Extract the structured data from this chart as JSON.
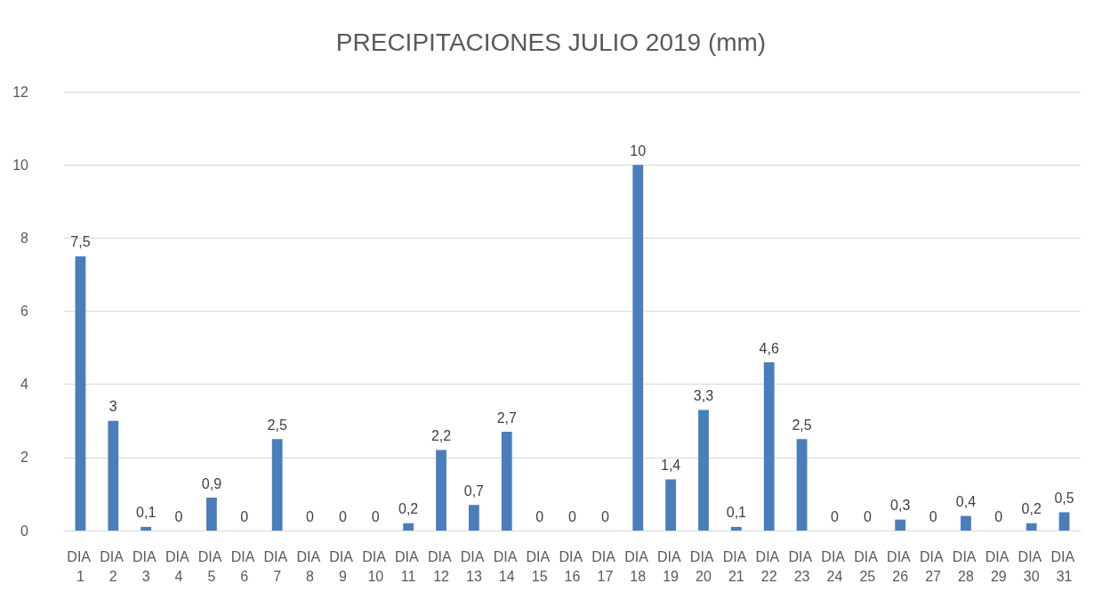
{
  "chart_data": {
    "type": "bar",
    "title": "PRECIPITACIONES JULIO 2019 (mm)",
    "categories": [
      "DIA 1",
      "DIA 2",
      "DIA 3",
      "DIA 4",
      "DIA 5",
      "DIA 6",
      "DIA 7",
      "DIA 8",
      "DIA 9",
      "DIA 10",
      "DIA 11",
      "DIA 12",
      "DIA 13",
      "DIA 14",
      "DIA 15",
      "DIA 16",
      "DIA 17",
      "DIA 18",
      "DIA 19",
      "DIA 20",
      "DIA 21",
      "DIA 22",
      "DIA 23",
      "DIA 24",
      "DIA 25",
      "DIA 26",
      "DIA 27",
      "DIA 28",
      "DIA 29",
      "DIA 30",
      "DIA 31"
    ],
    "values": [
      7.5,
      3,
      0.1,
      0,
      0.9,
      0,
      2.5,
      0,
      0,
      0,
      0.2,
      2.2,
      0.7,
      2.7,
      0,
      0,
      0,
      10,
      1.4,
      3.3,
      0.1,
      4.6,
      2.5,
      0,
      0,
      0.3,
      0,
      0.4,
      0,
      0.2,
      0.5
    ],
    "value_labels": [
      "7,5",
      "3",
      "0,1",
      "0",
      "0,9",
      "0",
      "2,5",
      "0",
      "0",
      "0",
      "0,2",
      "2,2",
      "0,7",
      "2,7",
      "0",
      "0",
      "0",
      "10",
      "1,4",
      "3,3",
      "0,1",
      "4,6",
      "2,5",
      "0",
      "0",
      "0,3",
      "0",
      "0,4",
      "0",
      "0,2",
      "0,5"
    ],
    "color": "#4a7ebb",
    "ylim": [
      0,
      12
    ],
    "yticks": [
      0,
      2,
      4,
      6,
      8,
      10,
      12
    ],
    "grid": "y"
  }
}
